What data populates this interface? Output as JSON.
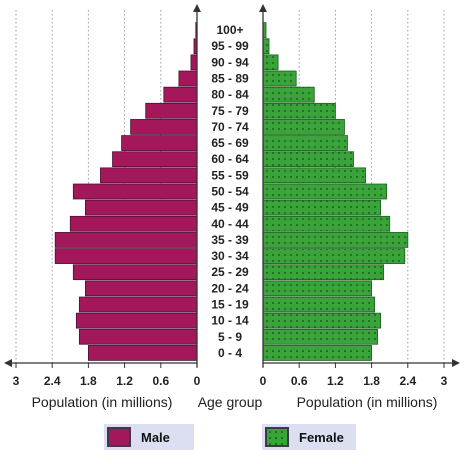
{
  "chart_data": {
    "type": "bar",
    "orientation": "horizontal",
    "subtype": "population-pyramid",
    "categories": [
      "0 - 4",
      "5 - 9",
      "10 - 14",
      "15 - 19",
      "20 - 24",
      "25 - 29",
      "30 - 34",
      "35 - 39",
      "40 - 44",
      "45 - 49",
      "50 - 54",
      "55 - 59",
      "60 - 64",
      "65 - 69",
      "70 - 74",
      "75 - 79",
      "80 - 84",
      "85 - 89",
      "90 - 94",
      "95 - 99",
      "100+"
    ],
    "series": [
      {
        "name": "Male",
        "color": "#a3185a",
        "pattern": "none",
        "values": [
          1.8,
          1.95,
          2.0,
          1.95,
          1.85,
          2.05,
          2.35,
          2.35,
          2.1,
          1.85,
          2.05,
          1.6,
          1.4,
          1.25,
          1.1,
          0.85,
          0.55,
          0.3,
          0.1,
          0.05,
          0.02
        ]
      },
      {
        "name": "Female",
        "color": "#3aa33a",
        "pattern": "dots",
        "values": [
          1.8,
          1.9,
          1.95,
          1.85,
          1.8,
          2.0,
          2.35,
          2.4,
          2.1,
          1.95,
          2.05,
          1.7,
          1.5,
          1.4,
          1.35,
          1.2,
          0.85,
          0.55,
          0.25,
          0.1,
          0.05
        ]
      }
    ],
    "left_axis": {
      "label": "Population (in millions)",
      "ticks": [
        "3",
        "2.4",
        "1.8",
        "1.2",
        "0.6",
        "0"
      ],
      "range": [
        3,
        0
      ]
    },
    "right_axis": {
      "label": "Population (in millions)",
      "ticks": [
        "0",
        "0.6",
        "1.2",
        "1.8",
        "2.4",
        "3"
      ],
      "range": [
        0,
        3
      ]
    },
    "center_label": "Age group",
    "grid": true,
    "legend": {
      "placement": "bottom",
      "items": [
        {
          "label": "Male",
          "color": "#a3185a"
        },
        {
          "label": "Female",
          "color": "#3aa33a"
        }
      ]
    }
  }
}
